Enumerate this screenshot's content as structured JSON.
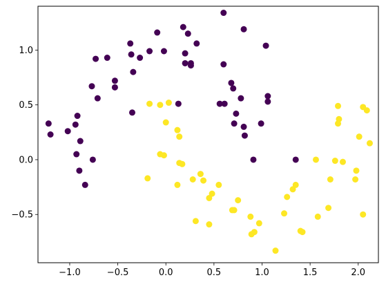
{
  "chart_data": {
    "type": "scatter",
    "title": "",
    "xlabel": "",
    "ylabel": "",
    "xlim": [
      -1.33,
      2.21
    ],
    "ylim": [
      -0.94,
      1.4
    ],
    "grid": false,
    "xticks": [
      -1.0,
      -0.5,
      0.0,
      0.5,
      1.0,
      1.5,
      2.0
    ],
    "xtick_labels": [
      "−1.0",
      "−0.5",
      "0.0",
      "0.5",
      "1.0",
      "1.5",
      "2.0"
    ],
    "yticks": [
      -0.5,
      0.0,
      0.5,
      1.0
    ],
    "ytick_labels": [
      "−0.5",
      "0.0",
      "0.5",
      "1.0"
    ],
    "series": [
      {
        "class": 0,
        "color": "#440154",
        "points": [
          [
            0.6,
            1.34
          ],
          [
            0.18,
            1.21
          ],
          [
            0.23,
            1.15
          ],
          [
            0.81,
            1.19
          ],
          [
            -0.09,
            1.16
          ],
          [
            -0.37,
            1.06
          ],
          [
            0.32,
            1.06
          ],
          [
            1.04,
            1.04
          ],
          [
            -0.36,
            0.96
          ],
          [
            -0.17,
            0.99
          ],
          [
            -0.02,
            0.99
          ],
          [
            0.2,
            0.97
          ],
          [
            -0.27,
            0.93
          ],
          [
            -0.73,
            0.92
          ],
          [
            -0.61,
            0.93
          ],
          [
            0.2,
            0.88
          ],
          [
            0.26,
            0.88
          ],
          [
            0.26,
            0.86
          ],
          [
            0.6,
            0.87
          ],
          [
            -0.34,
            0.8
          ],
          [
            -0.53,
            0.72
          ],
          [
            -0.53,
            0.66
          ],
          [
            -0.77,
            0.67
          ],
          [
            0.68,
            0.7
          ],
          [
            0.7,
            0.65
          ],
          [
            -0.71,
            0.56
          ],
          [
            0.78,
            0.56
          ],
          [
            1.06,
            0.58
          ],
          [
            1.06,
            0.53
          ],
          [
            0.56,
            0.51
          ],
          [
            0.61,
            0.51
          ],
          [
            0.13,
            0.51
          ],
          [
            -0.35,
            0.43
          ],
          [
            0.73,
            0.42
          ],
          [
            -0.92,
            0.4
          ],
          [
            -0.94,
            0.32
          ],
          [
            0.71,
            0.33
          ],
          [
            0.99,
            0.33
          ],
          [
            -1.22,
            0.33
          ],
          [
            0.81,
            0.3
          ],
          [
            -1.02,
            0.26
          ],
          [
            -1.2,
            0.23
          ],
          [
            0.82,
            0.22
          ],
          [
            -0.89,
            0.17
          ],
          [
            -0.93,
            0.05
          ],
          [
            -0.76,
            0.0
          ],
          [
            0.91,
            0.0
          ],
          [
            1.35,
            0.0
          ],
          [
            -0.9,
            -0.1
          ],
          [
            -0.84,
            -0.23
          ]
        ]
      },
      {
        "class": 1,
        "color": "#fde725",
        "points": [
          [
            0.03,
            0.52
          ],
          [
            -0.06,
            0.5
          ],
          [
            -0.17,
            0.51
          ],
          [
            1.79,
            0.49
          ],
          [
            2.05,
            0.48
          ],
          [
            2.09,
            0.45
          ],
          [
            1.8,
            0.37
          ],
          [
            1.79,
            0.33
          ],
          [
            0.0,
            0.34
          ],
          [
            0.12,
            0.27
          ],
          [
            0.14,
            0.21
          ],
          [
            2.01,
            0.21
          ],
          [
            2.12,
            0.15
          ],
          [
            -0.06,
            0.05
          ],
          [
            -0.02,
            0.04
          ],
          [
            1.56,
            0.0
          ],
          [
            1.76,
            -0.01
          ],
          [
            1.84,
            -0.02
          ],
          [
            0.14,
            -0.03
          ],
          [
            0.17,
            -0.04
          ],
          [
            1.98,
            -0.1
          ],
          [
            0.36,
            -0.13
          ],
          [
            0.28,
            -0.18
          ],
          [
            1.71,
            -0.18
          ],
          [
            -0.19,
            -0.17
          ],
          [
            1.97,
            -0.18
          ],
          [
            0.39,
            -0.19
          ],
          [
            0.12,
            -0.23
          ],
          [
            0.55,
            -0.23
          ],
          [
            1.35,
            -0.23
          ],
          [
            1.32,
            -0.27
          ],
          [
            0.48,
            -0.31
          ],
          [
            1.26,
            -0.34
          ],
          [
            0.45,
            -0.35
          ],
          [
            0.75,
            -0.37
          ],
          [
            0.71,
            -0.46
          ],
          [
            0.69,
            -0.46
          ],
          [
            1.69,
            -0.44
          ],
          [
            1.23,
            -0.49
          ],
          [
            2.05,
            -0.5
          ],
          [
            0.88,
            -0.52
          ],
          [
            1.58,
            -0.52
          ],
          [
            0.31,
            -0.56
          ],
          [
            0.97,
            -0.58
          ],
          [
            0.45,
            -0.59
          ],
          [
            1.4,
            -0.65
          ],
          [
            1.42,
            -0.66
          ],
          [
            0.92,
            -0.66
          ],
          [
            0.89,
            -0.68
          ],
          [
            1.14,
            -0.83
          ]
        ]
      }
    ]
  }
}
